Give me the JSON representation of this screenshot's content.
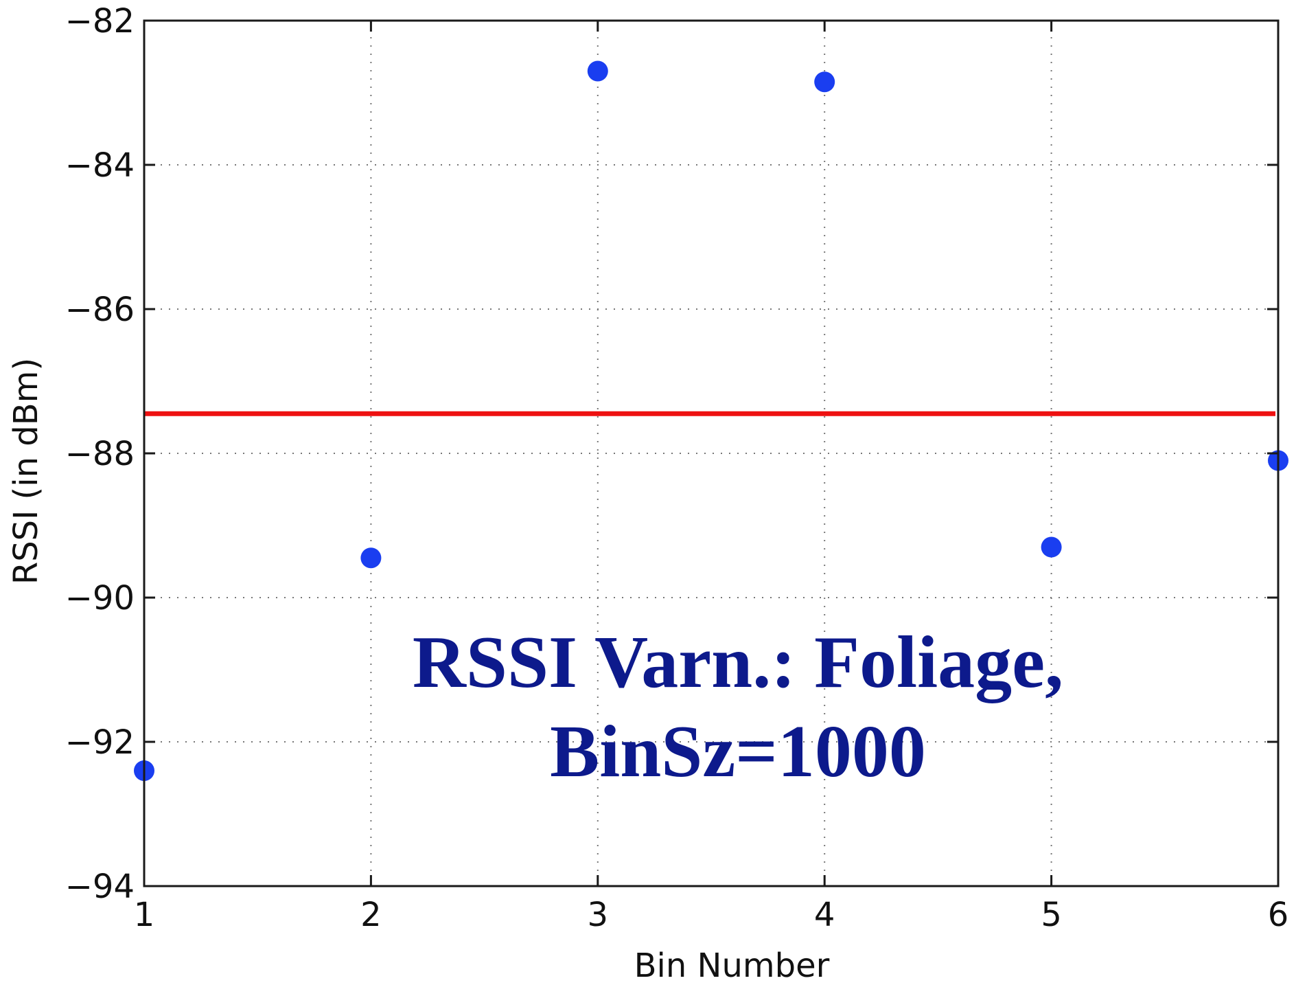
{
  "chart_data": {
    "type": "scatter",
    "title_lines": [
      "RSSI Varn.: Foliage,",
      "BinSz=1000"
    ],
    "xlabel": "Bin Number",
    "ylabel": "RSSI (in dBm)",
    "xlim": [
      1,
      6
    ],
    "ylim": [
      -94,
      -82
    ],
    "x_ticks": [
      1,
      2,
      3,
      4,
      5,
      6
    ],
    "x_tick_labels": [
      "1",
      "2",
      "3",
      "4",
      "5",
      "6"
    ],
    "y_ticks": [
      -82,
      -84,
      -86,
      -88,
      -90,
      -92,
      -94
    ],
    "y_tick_labels": [
      "−82",
      "−84",
      "−86",
      "−88",
      "−90",
      "−92",
      "−94"
    ],
    "grid": true,
    "series": [
      {
        "x": [
          1,
          2,
          3,
          4,
          5,
          6
        ],
        "y": [
          -92.4,
          -89.45,
          -82.7,
          -82.85,
          -89.3,
          -88.1
        ],
        "color": "#1a3ef0",
        "marker": "circle"
      }
    ],
    "reference_line": {
      "y": -87.45,
      "color": "#ee1111"
    },
    "title_color": "#0d1a8c"
  }
}
